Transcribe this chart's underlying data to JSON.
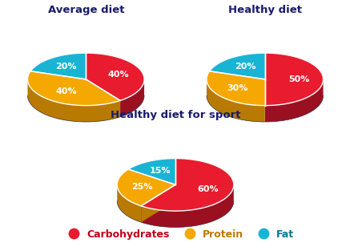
{
  "charts": [
    {
      "title": "Average diet",
      "values": [
        40,
        40,
        20
      ],
      "labels": [
        "40%",
        "40%",
        "20%"
      ],
      "start_angle": 90
    },
    {
      "title": "Healthy diet",
      "values": [
        50,
        30,
        20
      ],
      "labels": [
        "50%",
        "30%",
        "20%"
      ],
      "start_angle": 90
    },
    {
      "title": "Healthy diet for sport",
      "values": [
        60,
        25,
        15
      ],
      "labels": [
        "60%",
        "25%",
        "15%"
      ],
      "start_angle": 90
    }
  ],
  "colors_top": [
    "#e81c2e",
    "#f5a800",
    "#19b4d4"
  ],
  "colors_side": [
    "#9b1020",
    "#b87a00",
    "#1080a0"
  ],
  "dark_edge": "#222244",
  "background_color": "#ffffff",
  "legend_items": [
    "Carbohydrates",
    "Protein",
    "Fat"
  ],
  "legend_colors": [
    "#e81c2e",
    "#f5a800",
    "#19b4d4"
  ],
  "legend_text_colors": [
    "#c0001a",
    "#c07800",
    "#007890"
  ],
  "title_fontsize": 9.5,
  "label_fontsize": 8,
  "legend_fontsize": 9
}
